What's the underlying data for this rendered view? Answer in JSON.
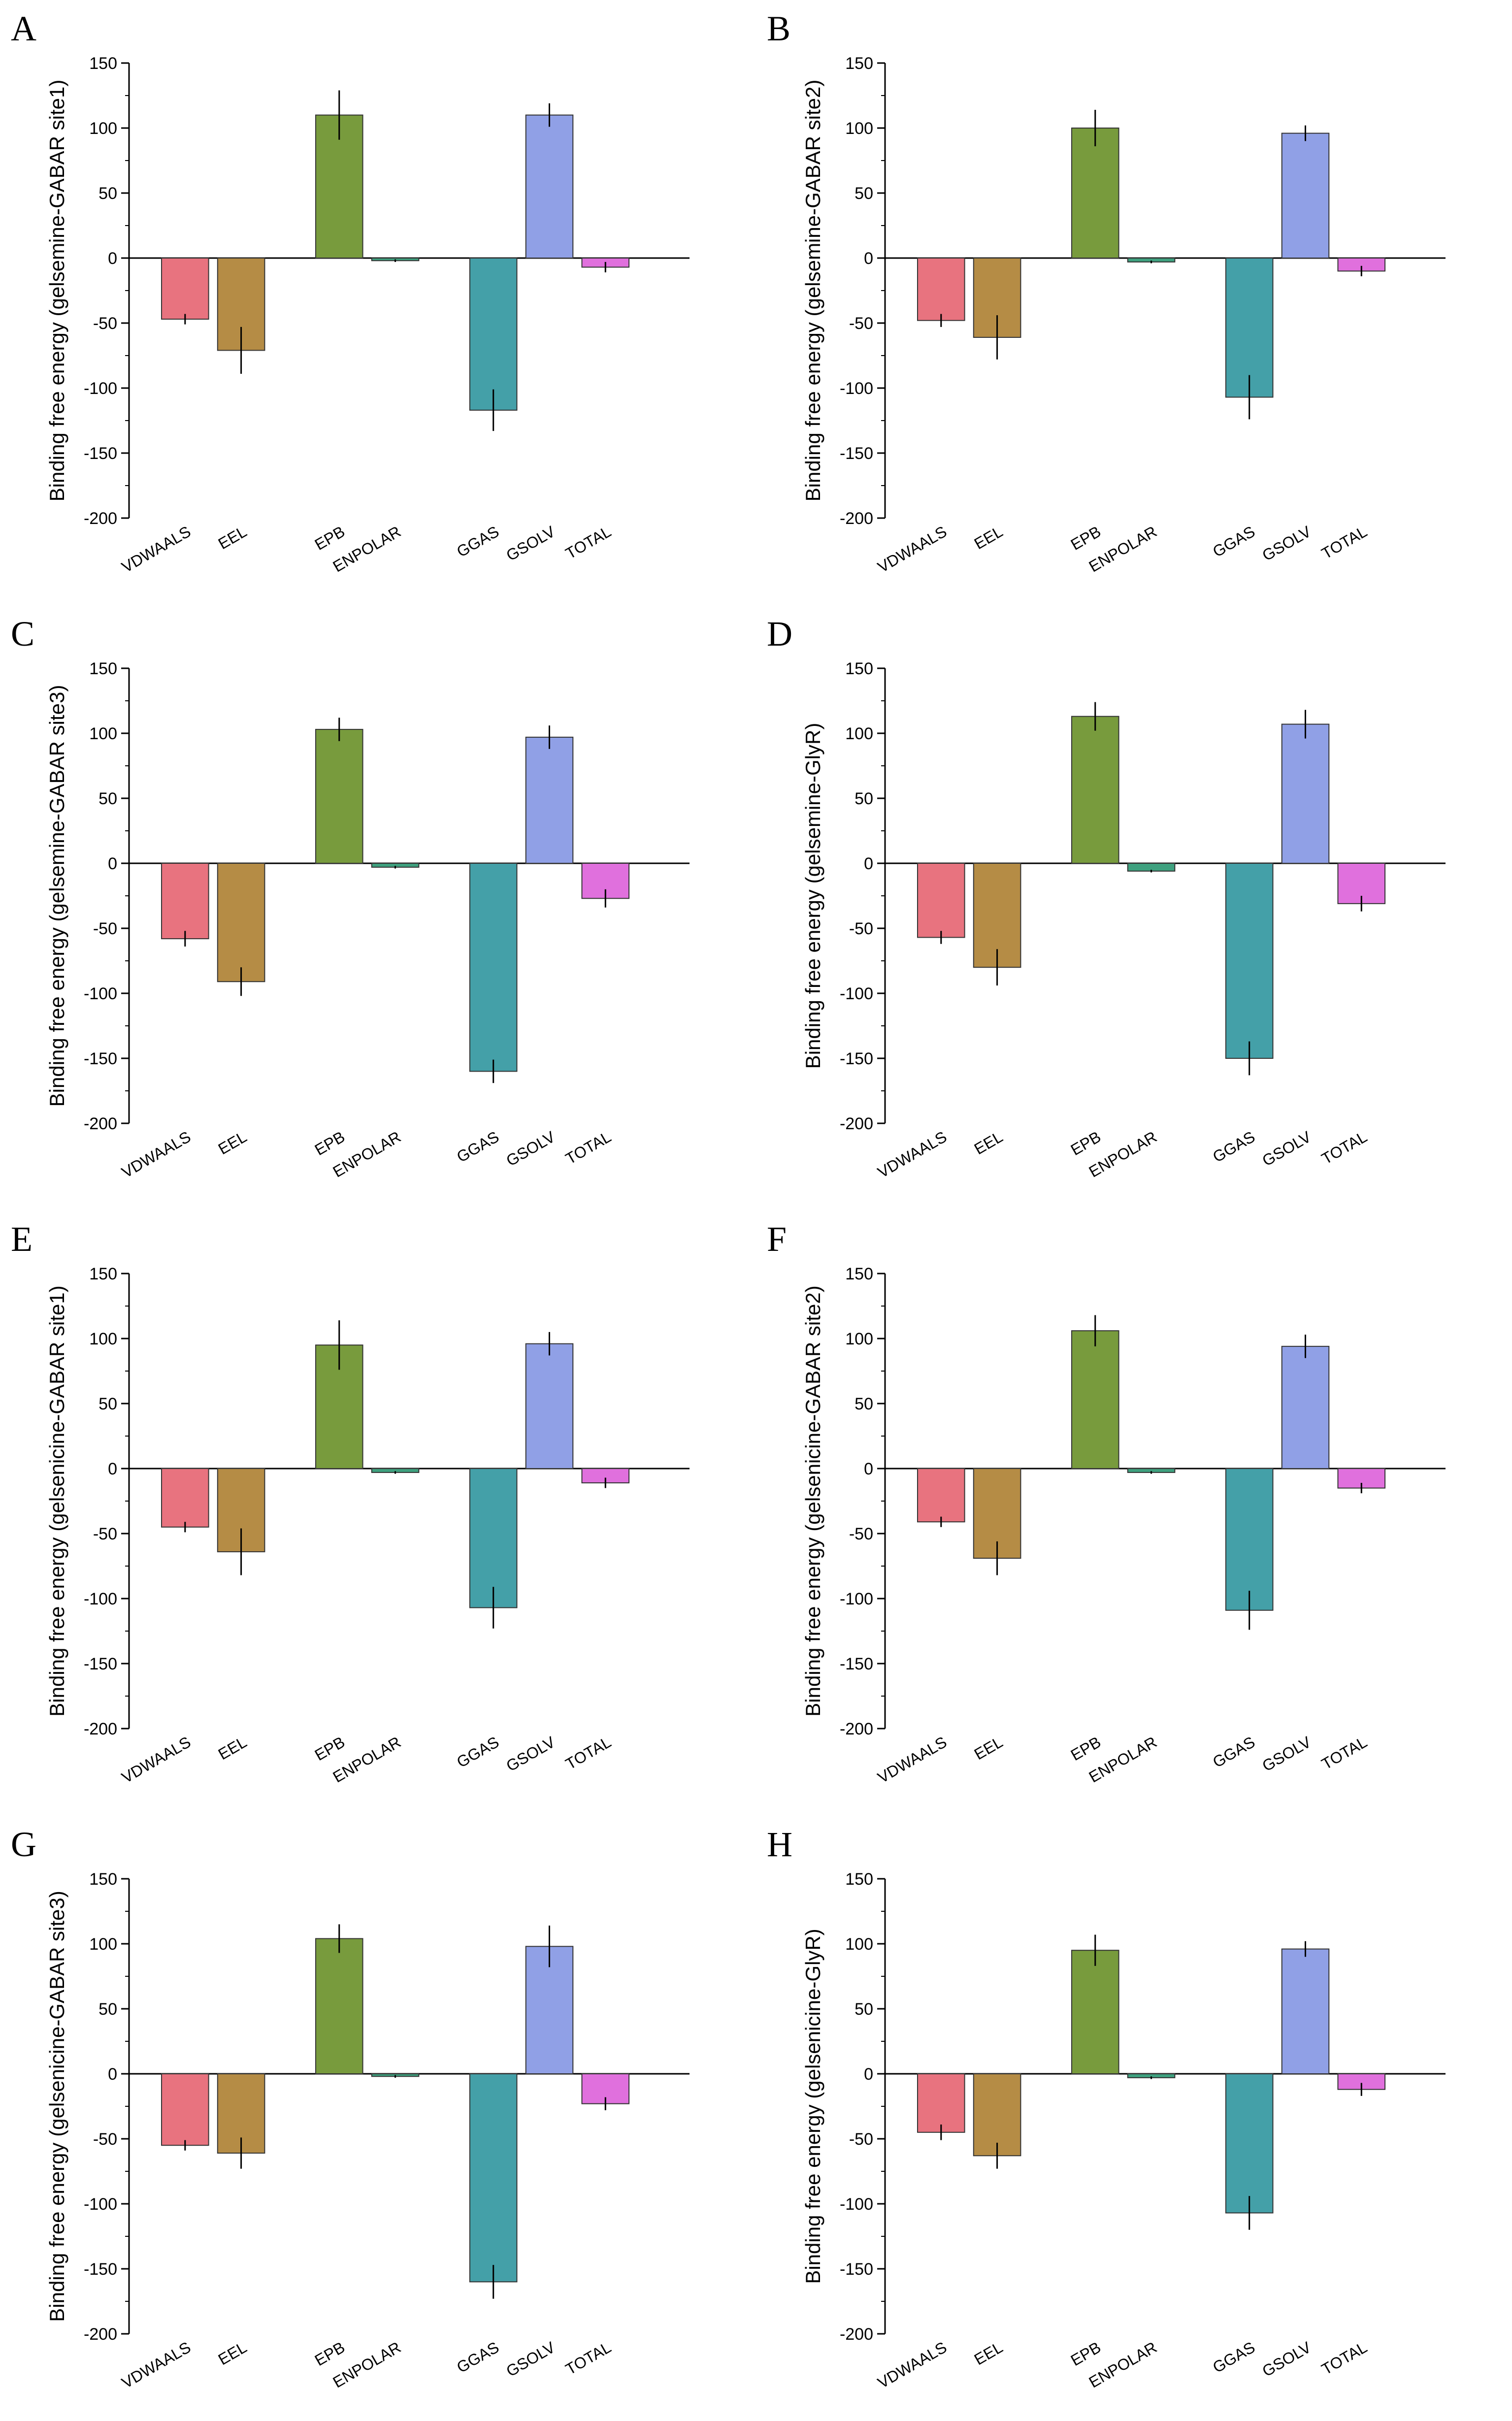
{
  "colors": {
    "VDWAALS": "#e8737f",
    "EEL": "#b58c45",
    "EPB": "#789b3d",
    "ENPOLAR": "#3fa17f",
    "GGAS": "#44a0a8",
    "GSOLV": "#90a0e6",
    "TOTAL": "#e070dd"
  },
  "chart_data": [
    {
      "panel": "A",
      "type": "bar",
      "ylabel": "Binding free energy (gelsemine-GABAR site1)",
      "ylim": [
        -200,
        150
      ],
      "yticks": [
        150,
        100,
        50,
        0,
        -50,
        -100,
        -150,
        -200
      ],
      "categories": [
        "VDWAALS",
        "EEL",
        "EPB",
        "ENPOLAR",
        "GGAS",
        "GSOLV",
        "TOTAL"
      ],
      "values": [
        -47,
        -71,
        110,
        -2,
        -117,
        110,
        -7
      ],
      "errors": [
        4,
        18,
        19,
        1,
        16,
        9,
        4
      ]
    },
    {
      "panel": "B",
      "type": "bar",
      "ylabel": "Binding free energy (gelsemine-GABAR site2)",
      "ylim": [
        -200,
        150
      ],
      "yticks": [
        150,
        100,
        50,
        0,
        -50,
        -100,
        -150,
        -200
      ],
      "categories": [
        "VDWAALS",
        "EEL",
        "EPB",
        "ENPOLAR",
        "GGAS",
        "GSOLV",
        "TOTAL"
      ],
      "values": [
        -48,
        -61,
        100,
        -3,
        -107,
        96,
        -10
      ],
      "errors": [
        5,
        17,
        14,
        1,
        17,
        6,
        4
      ]
    },
    {
      "panel": "C",
      "type": "bar",
      "ylabel": "Binding free energy (gelsemine-GABAR site3)",
      "ylim": [
        -200,
        150
      ],
      "yticks": [
        150,
        100,
        50,
        0,
        -50,
        -100,
        -150,
        -200
      ],
      "categories": [
        "VDWAALS",
        "EEL",
        "EPB",
        "ENPOLAR",
        "GGAS",
        "GSOLV",
        "TOTAL"
      ],
      "values": [
        -58,
        -91,
        103,
        -3,
        -160,
        97,
        -27
      ],
      "errors": [
        6,
        11,
        9,
        1,
        9,
        9,
        7
      ]
    },
    {
      "panel": "D",
      "type": "bar",
      "ylabel": "Binding free energy (gelsemine-GlyR)",
      "ylim": [
        -200,
        150
      ],
      "yticks": [
        150,
        100,
        50,
        0,
        -50,
        -100,
        -150,
        -200
      ],
      "categories": [
        "VDWAALS",
        "EEL",
        "EPB",
        "ENPOLAR",
        "GGAS",
        "GSOLV",
        "TOTAL"
      ],
      "values": [
        -57,
        -80,
        113,
        -6,
        -150,
        107,
        -31
      ],
      "errors": [
        5,
        14,
        11,
        1,
        13,
        11,
        6
      ]
    },
    {
      "panel": "E",
      "type": "bar",
      "ylabel": "Binding free energy (gelsenicine-GABAR site1)",
      "ylim": [
        -200,
        150
      ],
      "yticks": [
        150,
        100,
        50,
        0,
        -50,
        -100,
        -150,
        -200
      ],
      "categories": [
        "VDWAALS",
        "EEL",
        "EPB",
        "ENPOLAR",
        "GGAS",
        "GSOLV",
        "TOTAL"
      ],
      "values": [
        -45,
        -64,
        95,
        -3,
        -107,
        96,
        -11
      ],
      "errors": [
        4,
        18,
        19,
        1,
        16,
        9,
        4
      ]
    },
    {
      "panel": "F",
      "type": "bar",
      "ylabel": "Binding free energy (gelsenicine-GABAR site2)",
      "ylim": [
        -200,
        150
      ],
      "yticks": [
        150,
        100,
        50,
        0,
        -50,
        -100,
        -150,
        -200
      ],
      "categories": [
        "VDWAALS",
        "EEL",
        "EPB",
        "ENPOLAR",
        "GGAS",
        "GSOLV",
        "TOTAL"
      ],
      "values": [
        -41,
        -69,
        106,
        -3,
        -109,
        94,
        -15
      ],
      "errors": [
        4,
        13,
        12,
        1,
        15,
        9,
        4
      ]
    },
    {
      "panel": "G",
      "type": "bar",
      "ylabel": "Binding free energy (gelsenicine-GABAR site3)",
      "ylim": [
        -200,
        150
      ],
      "yticks": [
        150,
        100,
        50,
        0,
        -50,
        -100,
        -150,
        -200
      ],
      "categories": [
        "VDWAALS",
        "EEL",
        "EPB",
        "ENPOLAR",
        "GGAS",
        "GSOLV",
        "TOTAL"
      ],
      "values": [
        -55,
        -61,
        104,
        -2,
        -160,
        98,
        -23
      ],
      "errors": [
        4,
        12,
        11,
        1,
        13,
        16,
        5
      ]
    },
    {
      "panel": "H",
      "type": "bar",
      "ylabel": "Binding free energy (gelsenicine-GlyR)",
      "ylim": [
        -200,
        150
      ],
      "yticks": [
        150,
        100,
        50,
        0,
        -50,
        -100,
        -150,
        -200
      ],
      "categories": [
        "VDWAALS",
        "EEL",
        "EPB",
        "ENPOLAR",
        "GGAS",
        "GSOLV",
        "TOTAL"
      ],
      "values": [
        -45,
        -63,
        95,
        -3,
        -107,
        96,
        -12
      ],
      "errors": [
        6,
        10,
        12,
        1,
        13,
        6,
        5
      ]
    }
  ]
}
